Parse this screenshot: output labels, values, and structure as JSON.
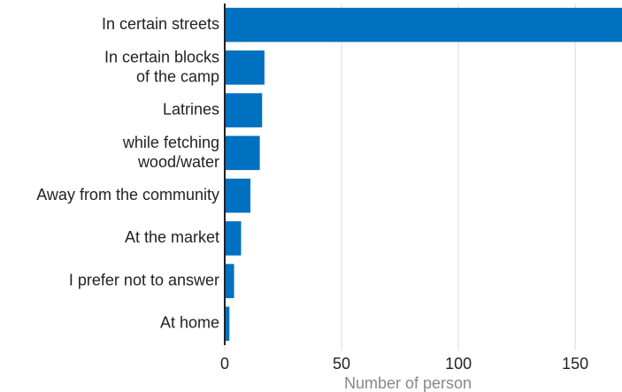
{
  "chart_data": {
    "type": "bar",
    "orientation": "horizontal",
    "categories": [
      "In certain streets",
      "In certain blocks\nof the camp",
      "Latrines",
      "while fetching\nwood/water",
      "Away from the community",
      "At the market",
      "I prefer not to answer",
      "At home"
    ],
    "values": [
      170,
      17,
      16,
      15,
      11,
      7,
      4,
      2
    ],
    "color": "#0070c0",
    "xlabel": "Number of person",
    "xlim": [
      0,
      170
    ],
    "xticks": [
      0,
      50,
      100,
      150
    ],
    "grid": true
  }
}
